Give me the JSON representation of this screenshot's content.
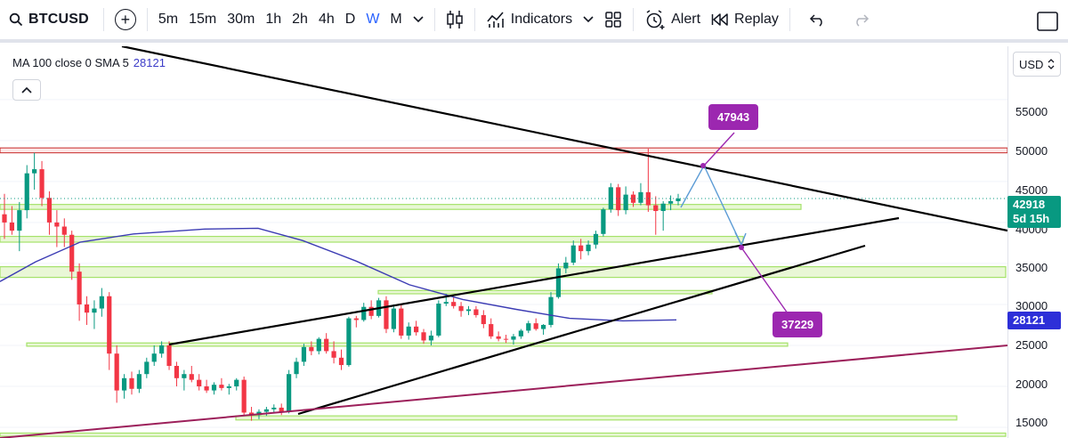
{
  "toolbar": {
    "symbol": "BTCUSD",
    "intervals": [
      "5m",
      "15m",
      "30m",
      "1h",
      "2h",
      "4h",
      "D",
      "W",
      "M"
    ],
    "active_interval": "W",
    "indicators_label": "Indicators",
    "alert_label": "Alert",
    "replay_label": "Replay"
  },
  "legend": {
    "text": "MA 100 close 0 SMA 5",
    "value": "28121"
  },
  "currency": "USD",
  "price_scale": {
    "ticks": [
      "55000",
      "50000",
      "45000",
      "40000",
      "35000",
      "30000",
      "25000",
      "20000",
      "15000"
    ],
    "last_price": "42918",
    "countdown": "5d 15h",
    "ma_value": "28121"
  },
  "annotations": {
    "target_high": "47943",
    "target_low": "37229"
  },
  "colors": {
    "up": "#089981",
    "down": "#f23645",
    "ma_line": "#3c3cb4",
    "zone": "#a5e26a",
    "resistance": "#c62828",
    "trend": "#000000",
    "long_trend": "#9c1f5a",
    "projection": "#5b9bd5",
    "note": "#9c27b0"
  },
  "chart_data": {
    "type": "candlestick",
    "ylim": [
      13700,
      61500
    ],
    "candles": [
      [
        41000,
        43500,
        38000,
        40000
      ],
      [
        40000,
        42000,
        38500,
        39000
      ],
      [
        39000,
        42500,
        36500,
        41500
      ],
      [
        41500,
        47000,
        40500,
        46000
      ],
      [
        46000,
        48500,
        44000,
        46500
      ],
      [
        46500,
        47500,
        42000,
        43000
      ],
      [
        43000,
        43800,
        38500,
        40000
      ],
      [
        40000,
        41500,
        37000,
        39500
      ],
      [
        39500,
        40500,
        37000,
        38500
      ],
      [
        38500,
        39000,
        33000,
        34000
      ],
      [
        34000,
        35000,
        28000,
        30000
      ],
      [
        30000,
        31000,
        27500,
        29000
      ],
      [
        29000,
        30500,
        27000,
        29500
      ],
      [
        29500,
        32000,
        28500,
        31000
      ],
      [
        31000,
        31500,
        22000,
        24000
      ],
      [
        24000,
        25000,
        18000,
        19500
      ],
      [
        19500,
        21500,
        18500,
        21000
      ],
      [
        21000,
        21800,
        19000,
        19700
      ],
      [
        19700,
        22000,
        19200,
        21500
      ],
      [
        21500,
        23500,
        21000,
        23000
      ],
      [
        23000,
        25000,
        22500,
        24000
      ],
      [
        24000,
        25500,
        23500,
        25000
      ],
      [
        25000,
        25500,
        22000,
        22500
      ],
      [
        22500,
        23000,
        20000,
        21000
      ],
      [
        21000,
        22000,
        19500,
        21500
      ],
      [
        21500,
        22500,
        20500,
        20800
      ],
      [
        20800,
        21500,
        19500,
        20000
      ],
      [
        20000,
        20800,
        19200,
        19500
      ],
      [
        19500,
        20500,
        19000,
        20200
      ],
      [
        20200,
        21000,
        19500,
        19800
      ],
      [
        19800,
        20300,
        19000,
        20000
      ],
      [
        20000,
        21000,
        19500,
        20800
      ],
      [
        20800,
        21200,
        16500,
        16800
      ],
      [
        16800,
        17500,
        15800,
        16500
      ],
      [
        16500,
        17200,
        16000,
        16900
      ],
      [
        16900,
        17500,
        16400,
        17200
      ],
      [
        17200,
        17800,
        16800,
        17400
      ],
      [
        17400,
        17900,
        16500,
        16900
      ],
      [
        16900,
        22000,
        16700,
        21500
      ],
      [
        21500,
        23500,
        21000,
        23000
      ],
      [
        23000,
        25200,
        22500,
        24800
      ],
      [
        24800,
        25500,
        23800,
        24300
      ],
      [
        24300,
        26000,
        23900,
        25800
      ],
      [
        25800,
        26500,
        24000,
        24300
      ],
      [
        24300,
        25500,
        22800,
        23500
      ],
      [
        23500,
        24500,
        22000,
        22600
      ],
      [
        22600,
        28500,
        22400,
        28300
      ],
      [
        28300,
        28600,
        27200,
        28100
      ],
      [
        28100,
        30200,
        27900,
        29700
      ],
      [
        29700,
        30500,
        28200,
        28600
      ],
      [
        28600,
        30800,
        28400,
        30500
      ],
      [
        30500,
        31000,
        26500,
        27000
      ],
      [
        27000,
        30000,
        26600,
        29500
      ],
      [
        29500,
        30000,
        25800,
        26200
      ],
      [
        26200,
        27800,
        25700,
        27300
      ],
      [
        27300,
        28000,
        26200,
        26600
      ],
      [
        26600,
        27000,
        25200,
        25600
      ],
      [
        25600,
        26800,
        25000,
        26200
      ],
      [
        26200,
        30500,
        26000,
        30100
      ],
      [
        30100,
        31300,
        29800,
        30300
      ],
      [
        30300,
        31000,
        29500,
        29800
      ],
      [
        29800,
        30300,
        28500,
        29200
      ],
      [
        29200,
        29800,
        28700,
        29400
      ],
      [
        29400,
        29800,
        28400,
        28700
      ],
      [
        28700,
        29300,
        27100,
        27600
      ],
      [
        27600,
        28300,
        25800,
        26100
      ],
      [
        26100,
        26700,
        25500,
        25800
      ],
      [
        25800,
        26300,
        25300,
        25700
      ],
      [
        25700,
        26400,
        25100,
        26100
      ],
      [
        26100,
        27000,
        25800,
        26800
      ],
      [
        26800,
        28000,
        26500,
        27700
      ],
      [
        27700,
        28300,
        26800,
        27000
      ],
      [
        27000,
        27600,
        26300,
        27500
      ],
      [
        27500,
        31500,
        27200,
        30900
      ],
      [
        30900,
        35000,
        30700,
        34400
      ],
      [
        34400,
        35800,
        33800,
        35100
      ],
      [
        35100,
        37800,
        34800,
        37200
      ],
      [
        37200,
        38000,
        35500,
        36500
      ],
      [
        36500,
        37800,
        36000,
        37300
      ],
      [
        37300,
        39000,
        36800,
        38600
      ],
      [
        38600,
        41800,
        38300,
        41600
      ],
      [
        41600,
        44800,
        41200,
        44300
      ],
      [
        44300,
        44700,
        40800,
        41500
      ],
      [
        41500,
        44400,
        41000,
        43400
      ],
      [
        43400,
        43800,
        41900,
        42400
      ],
      [
        42400,
        44800,
        42100,
        43700
      ],
      [
        43700,
        49000,
        41300,
        42100
      ],
      [
        42100,
        43200,
        38500,
        41400
      ],
      [
        41400,
        42600,
        39000,
        42300
      ],
      [
        42300,
        43300,
        41500,
        42600
      ],
      [
        42600,
        43500,
        42100,
        42918
      ]
    ]
  }
}
